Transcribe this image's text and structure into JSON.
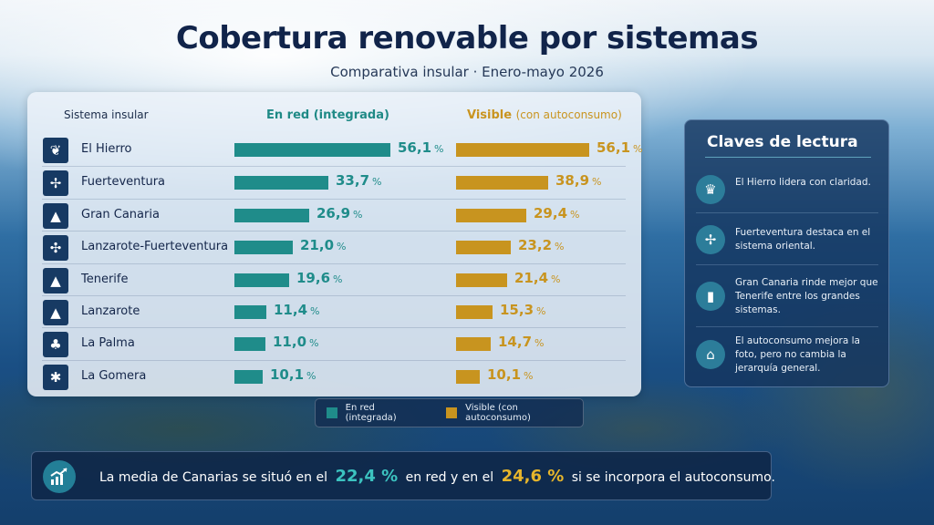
{
  "header": {
    "title": "Cobertura renovable por sistemas",
    "subtitle": "Comparativa insular · Enero-mayo 2026"
  },
  "columns": {
    "system": "Sistema insular",
    "grid": "En red (integrada)",
    "visible_main": "Visible",
    "visible_sub": "(con autoconsumo)"
  },
  "units": {
    "pct": "%"
  },
  "chart_data": {
    "type": "bar",
    "orientation": "horizontal",
    "title": "Cobertura renovable por sistemas",
    "subtitle": "Comparativa insular · Enero-mayo 2026",
    "categories": [
      "El Hierro",
      "Fuerteventura",
      "Gran Canaria",
      "Lanzarote-Fuerteventura",
      "Tenerife",
      "Lanzarote",
      "La Palma",
      "La Gomera"
    ],
    "series": [
      {
        "name": "En red (integrada)",
        "color": "#1f8c8a",
        "values": [
          56.1,
          33.7,
          26.9,
          21.0,
          19.6,
          11.4,
          11.0,
          10.1
        ],
        "labels": [
          "56,1",
          "33,7",
          "26,9",
          "21,0",
          "19,6",
          "11,4",
          "11,0",
          "10,1"
        ]
      },
      {
        "name": "Visible (con autoconsumo)",
        "color": "#c8941f",
        "values": [
          56.1,
          38.9,
          29.4,
          23.2,
          21.4,
          15.3,
          14.7,
          10.1
        ],
        "labels": [
          "56,1",
          "38,9",
          "29,4",
          "23,2",
          "21,4",
          "15,3",
          "14,7",
          "10,1"
        ]
      }
    ],
    "xlim": [
      0,
      56.1
    ],
    "legend_position": "bottom-center",
    "grid": false
  },
  "rows": [
    {
      "name": "El Hierro",
      "icon": "tree-icon",
      "glyph": "❦"
    },
    {
      "name": "Fuerteventura",
      "icon": "wind-turbine-icon",
      "glyph": "✢"
    },
    {
      "name": "Gran Canaria",
      "icon": "mountain-icon",
      "glyph": "▲"
    },
    {
      "name": "Lanzarote-Fuerteventura",
      "icon": "wind-turbines-icon",
      "glyph": "✣"
    },
    {
      "name": "Tenerife",
      "icon": "volcano-icon",
      "glyph": "▲"
    },
    {
      "name": "Lanzarote",
      "icon": "volcano-icon",
      "glyph": "▲"
    },
    {
      "name": "La Palma",
      "icon": "pine-tree-icon",
      "glyph": "♣"
    },
    {
      "name": "La Gomera",
      "icon": "palm-tree-icon",
      "glyph": "✱"
    }
  ],
  "legend": {
    "grid": "En red (integrada)",
    "visible": "Visible (con autoconsumo)"
  },
  "keys": {
    "title": "Claves de lectura",
    "items": [
      {
        "text": "El Hierro lidera con claridad.",
        "icon": "trophy-icon",
        "glyph": "♛"
      },
      {
        "text": "Fuerteventura destaca en el sistema oriental.",
        "icon": "wind-turbine-icon",
        "glyph": "✢"
      },
      {
        "text": "Gran Canaria rinde mejor que Tenerife entre los grandes sistemas.",
        "icon": "bar-chart-icon",
        "glyph": "▮"
      },
      {
        "text": "El autoconsumo mejora la foto, pero no cambia la jerarquía general.",
        "icon": "solar-house-icon",
        "glyph": "⌂"
      }
    ]
  },
  "banner": {
    "text_a": "La media de Canarias se situó en el",
    "value_grid": "22,4 %",
    "text_b": "en red y en el",
    "value_visible": "24,6 %",
    "text_c": "si se incorpora el autoconsumo."
  }
}
